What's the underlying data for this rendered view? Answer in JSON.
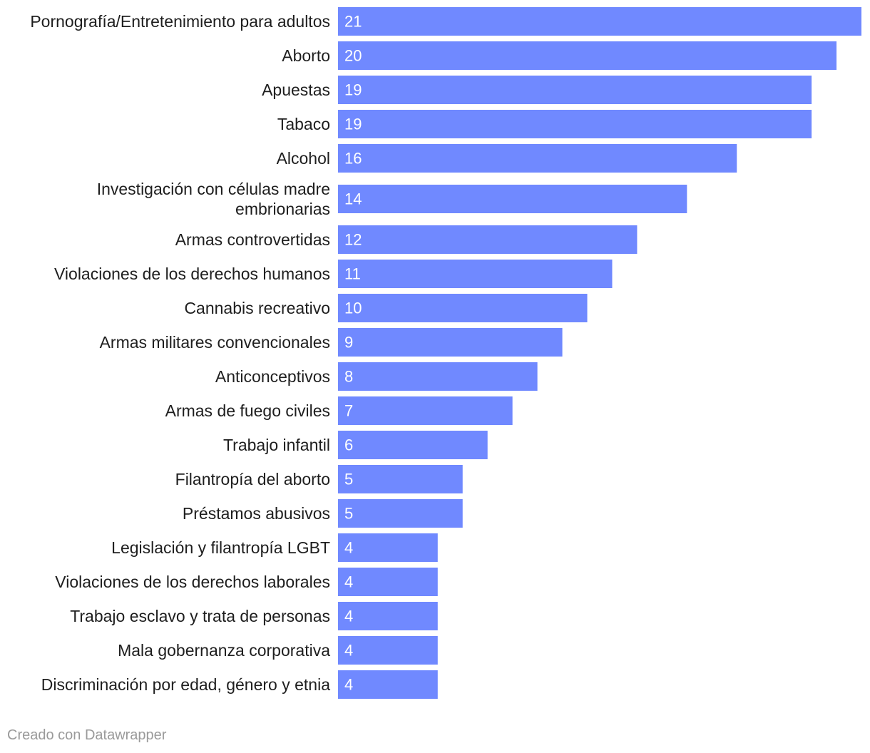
{
  "chart_data": {
    "type": "bar",
    "orientation": "horizontal",
    "categories": [
      [
        "Pornografía/Entretenimiento para adultos"
      ],
      [
        "Aborto"
      ],
      [
        "Apuestas"
      ],
      [
        "Tabaco"
      ],
      [
        "Alcohol"
      ],
      [
        "Investigación con células madre",
        "embrionarias"
      ],
      [
        "Armas controvertidas"
      ],
      [
        "Violaciones de los derechos humanos"
      ],
      [
        "Cannabis recreativo"
      ],
      [
        "Armas militares convencionales"
      ],
      [
        "Anticonceptivos"
      ],
      [
        "Armas de fuego civiles"
      ],
      [
        "Trabajo infantil"
      ],
      [
        "Filantropía del aborto"
      ],
      [
        "Préstamos abusivos"
      ],
      [
        "Legislación y filantropía LGBT"
      ],
      [
        "Violaciones de los derechos laborales"
      ],
      [
        "Trabajo esclavo y trata de personas"
      ],
      [
        "Mala gobernanza corporativa"
      ],
      [
        "Discriminación por edad, género y etnia"
      ]
    ],
    "values": [
      21,
      20,
      19,
      19,
      16,
      14,
      12,
      11,
      10,
      9,
      8,
      7,
      6,
      5,
      5,
      4,
      4,
      4,
      4,
      4
    ],
    "xlim": [
      0,
      21
    ],
    "grid": false,
    "bar_color": "#7089ff"
  },
  "footer": {
    "credit": "Creado con Datawrapper"
  }
}
